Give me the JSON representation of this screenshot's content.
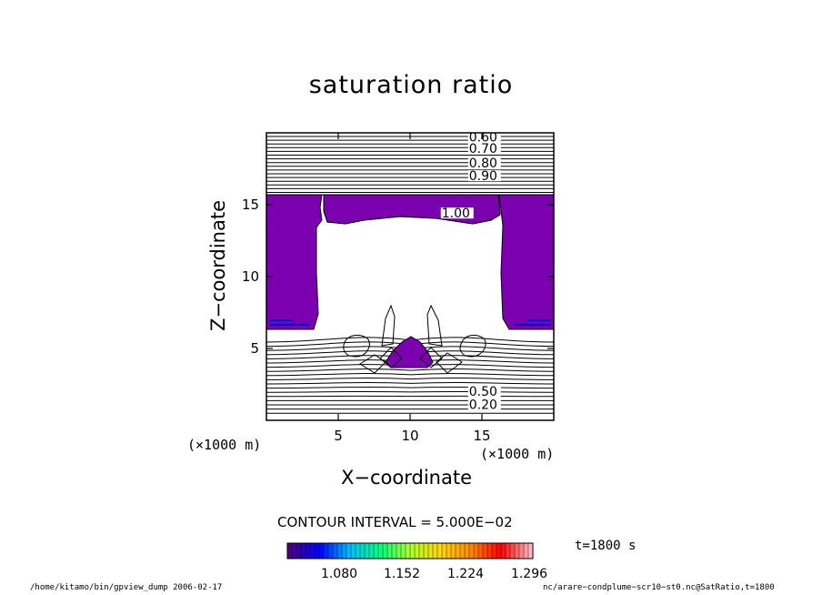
{
  "chart_data": {
    "type": "contour",
    "title": "saturation ratio",
    "xlabel": "X−coordinate",
    "ylabel": "Z−coordinate",
    "x_unit_left": "(×1000 m)",
    "x_unit_right": "(×1000 m)",
    "xlim": [
      0,
      20
    ],
    "ylim": [
      0,
      20
    ],
    "x_ticks": [
      5,
      10,
      15
    ],
    "y_ticks": [
      5,
      10,
      15
    ],
    "contour_labels": [
      {
        "text": "0.60",
        "x": 14.1,
        "y": 19.4
      },
      {
        "text": "0.70",
        "x": 14.1,
        "y": 18.6
      },
      {
        "text": "0.80",
        "x": 14.1,
        "y": 17.6
      },
      {
        "text": "0.90",
        "x": 14.1,
        "y": 16.7
      },
      {
        "text": "1.00",
        "x": 12.2,
        "y": 14.1
      },
      {
        "text": "0.50",
        "x": 14.1,
        "y": 1.7
      },
      {
        "text": "0.20",
        "x": 14.1,
        "y": 0.8
      }
    ],
    "contour_interval_text": "CONTOUR INTERVAL = 5.000E−02",
    "colorbar": {
      "labels": [
        "1.080",
        "1.152",
        "1.224",
        "1.296"
      ],
      "colors": [
        "#4b0082",
        "#0000ff",
        "#00bfff",
        "#00ff7f",
        "#adff2f",
        "#ffd700",
        "#ff8c00",
        "#ff0000",
        "#ffb6c1"
      ]
    },
    "time_label": "t=1800 s",
    "grid": false
  },
  "footer": {
    "left": "/home/kitamo/bin/gpview_dump  2006-02-17",
    "right": "nc/arare−condplume−scr10−st0.nc@SatRatio,t=1800"
  }
}
